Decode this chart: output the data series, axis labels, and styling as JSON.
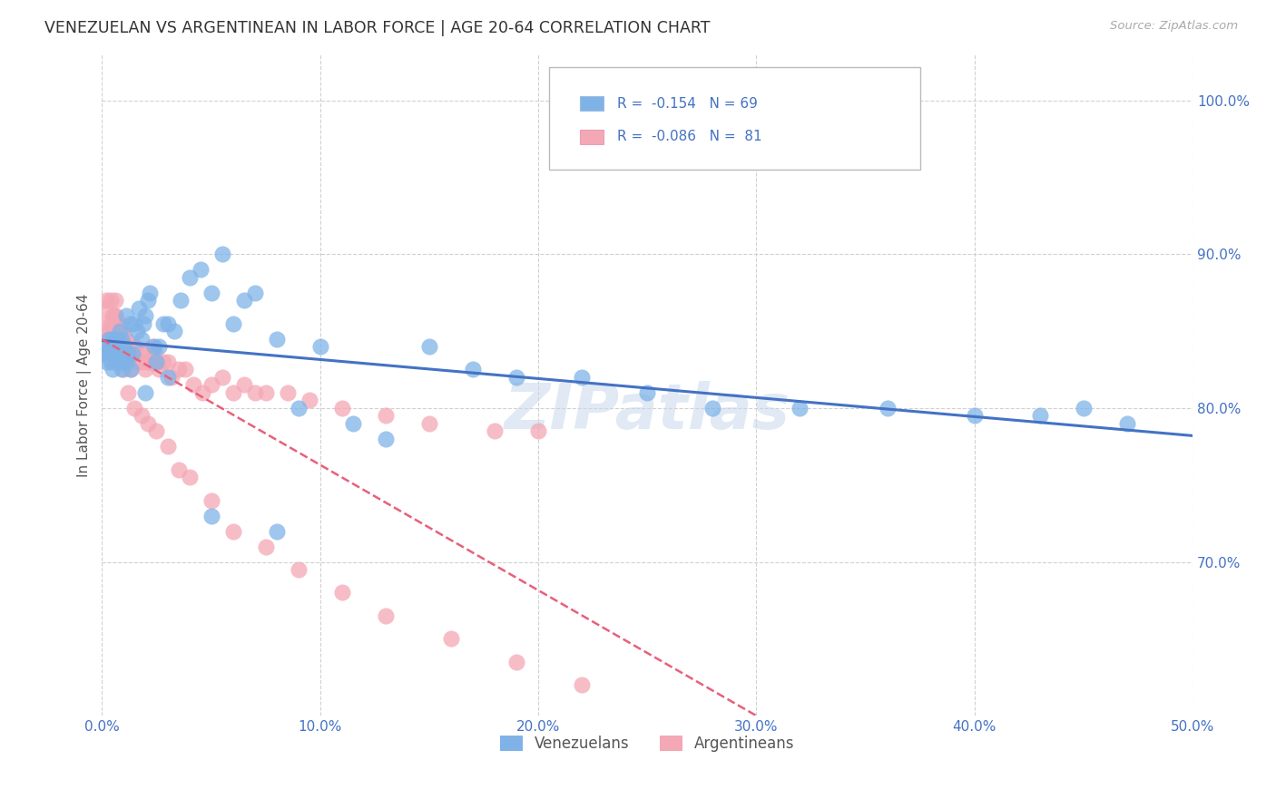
{
  "title": "VENEZUELAN VS ARGENTINEAN IN LABOR FORCE | AGE 20-64 CORRELATION CHART",
  "source": "Source: ZipAtlas.com",
  "ylabel": "In Labor Force | Age 20-64",
  "xlim": [
    0.0,
    0.5
  ],
  "ylim": [
    0.6,
    1.03
  ],
  "xticks": [
    0.0,
    0.1,
    0.2,
    0.3,
    0.4,
    0.5
  ],
  "xticklabels": [
    "0.0%",
    "10.0%",
    "20.0%",
    "30.0%",
    "40.0%",
    "50.0%"
  ],
  "yticks": [
    0.7,
    0.8,
    0.9,
    1.0
  ],
  "yticklabels": [
    "70.0%",
    "80.0%",
    "90.0%",
    "100.0%"
  ],
  "blue_color": "#7fb3e8",
  "pink_color": "#f4a7b5",
  "blue_line_color": "#4472c4",
  "pink_line_color": "#e8607a",
  "watermark": "ZIPatlas",
  "legend_R_blue": "R =  -0.154",
  "legend_N_blue": "N = 69",
  "legend_R_pink": "R =  -0.086",
  "legend_N_pink": "N =  81",
  "venezuelans_x": [
    0.001,
    0.002,
    0.002,
    0.003,
    0.003,
    0.004,
    0.004,
    0.005,
    0.005,
    0.005,
    0.006,
    0.006,
    0.007,
    0.007,
    0.008,
    0.008,
    0.009,
    0.009,
    0.01,
    0.01,
    0.011,
    0.011,
    0.012,
    0.013,
    0.013,
    0.014,
    0.015,
    0.016,
    0.017,
    0.018,
    0.019,
    0.02,
    0.021,
    0.022,
    0.024,
    0.026,
    0.028,
    0.03,
    0.033,
    0.036,
    0.04,
    0.045,
    0.05,
    0.055,
    0.06,
    0.065,
    0.07,
    0.08,
    0.09,
    0.1,
    0.115,
    0.13,
    0.15,
    0.17,
    0.19,
    0.22,
    0.25,
    0.28,
    0.32,
    0.36,
    0.4,
    0.43,
    0.45,
    0.47,
    0.02,
    0.025,
    0.03,
    0.05,
    0.08
  ],
  "venezuelans_y": [
    0.835,
    0.84,
    0.83,
    0.845,
    0.835,
    0.83,
    0.84,
    0.835,
    0.845,
    0.825,
    0.84,
    0.83,
    0.845,
    0.835,
    0.85,
    0.835,
    0.845,
    0.825,
    0.84,
    0.83,
    0.86,
    0.83,
    0.835,
    0.855,
    0.825,
    0.835,
    0.855,
    0.85,
    0.865,
    0.845,
    0.855,
    0.86,
    0.87,
    0.875,
    0.84,
    0.84,
    0.855,
    0.855,
    0.85,
    0.87,
    0.885,
    0.89,
    0.875,
    0.9,
    0.855,
    0.87,
    0.875,
    0.845,
    0.8,
    0.84,
    0.79,
    0.78,
    0.84,
    0.825,
    0.82,
    0.82,
    0.81,
    0.8,
    0.8,
    0.8,
    0.795,
    0.795,
    0.8,
    0.79,
    0.81,
    0.83,
    0.82,
    0.73,
    0.72
  ],
  "argentineans_x": [
    0.001,
    0.001,
    0.002,
    0.002,
    0.003,
    0.003,
    0.004,
    0.004,
    0.005,
    0.005,
    0.006,
    0.006,
    0.007,
    0.007,
    0.008,
    0.008,
    0.009,
    0.009,
    0.01,
    0.01,
    0.011,
    0.011,
    0.012,
    0.012,
    0.013,
    0.013,
    0.014,
    0.015,
    0.015,
    0.016,
    0.017,
    0.018,
    0.019,
    0.02,
    0.021,
    0.022,
    0.023,
    0.024,
    0.025,
    0.026,
    0.028,
    0.03,
    0.032,
    0.035,
    0.038,
    0.042,
    0.046,
    0.05,
    0.055,
    0.06,
    0.065,
    0.07,
    0.075,
    0.085,
    0.095,
    0.11,
    0.13,
    0.15,
    0.18,
    0.2,
    0.004,
    0.006,
    0.008,
    0.01,
    0.012,
    0.015,
    0.018,
    0.021,
    0.025,
    0.03,
    0.035,
    0.04,
    0.05,
    0.06,
    0.075,
    0.09,
    0.11,
    0.13,
    0.16,
    0.19,
    0.22
  ],
  "argentineans_y": [
    0.865,
    0.855,
    0.87,
    0.845,
    0.85,
    0.84,
    0.855,
    0.845,
    0.86,
    0.84,
    0.87,
    0.86,
    0.855,
    0.84,
    0.855,
    0.835,
    0.85,
    0.84,
    0.84,
    0.845,
    0.845,
    0.84,
    0.835,
    0.84,
    0.84,
    0.825,
    0.835,
    0.84,
    0.84,
    0.83,
    0.835,
    0.83,
    0.835,
    0.825,
    0.83,
    0.83,
    0.84,
    0.835,
    0.83,
    0.825,
    0.83,
    0.83,
    0.82,
    0.825,
    0.825,
    0.815,
    0.81,
    0.815,
    0.82,
    0.81,
    0.815,
    0.81,
    0.81,
    0.81,
    0.805,
    0.8,
    0.795,
    0.79,
    0.785,
    0.785,
    0.87,
    0.86,
    0.84,
    0.825,
    0.81,
    0.8,
    0.795,
    0.79,
    0.785,
    0.775,
    0.76,
    0.755,
    0.74,
    0.72,
    0.71,
    0.695,
    0.68,
    0.665,
    0.65,
    0.635,
    0.62
  ]
}
